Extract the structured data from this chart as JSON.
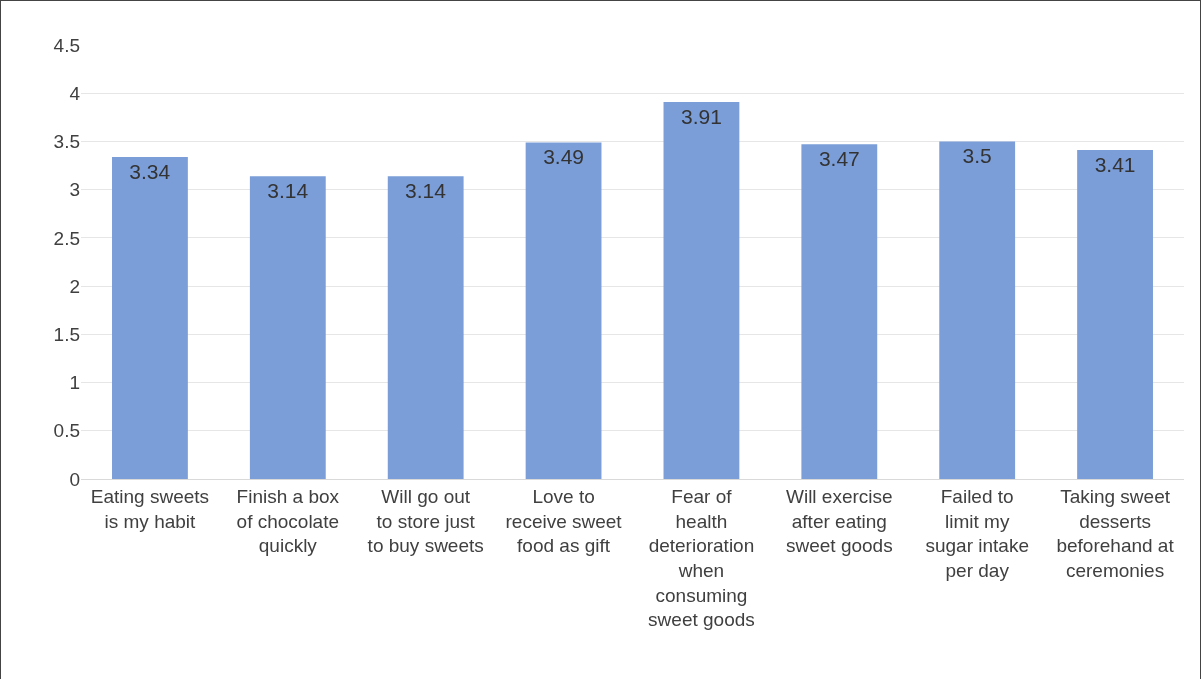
{
  "chart_data": {
    "type": "bar",
    "categories": [
      "Eating sweets is my habit",
      "Finish a box of chocolate quickly",
      "Will go out to store just to buy sweets",
      "Love to receive sweet food as gift",
      "Fear of health deterioration when consuming sweet goods",
      "Will exercise after eating sweet goods",
      "Failed to limit my sugar intake per day",
      "Taking sweet desserts beforehand at ceremonies"
    ],
    "values": [
      3.34,
      3.14,
      3.14,
      3.49,
      3.91,
      3.47,
      3.5,
      3.41
    ],
    "color": "#7b9ed9",
    "ylim": [
      0,
      4.5
    ],
    "yticks": [
      0,
      0.5,
      1,
      1.5,
      2,
      2.5,
      3,
      3.5,
      4,
      4.5
    ],
    "grid": "y",
    "data_labels": true,
    "legend": false
  }
}
